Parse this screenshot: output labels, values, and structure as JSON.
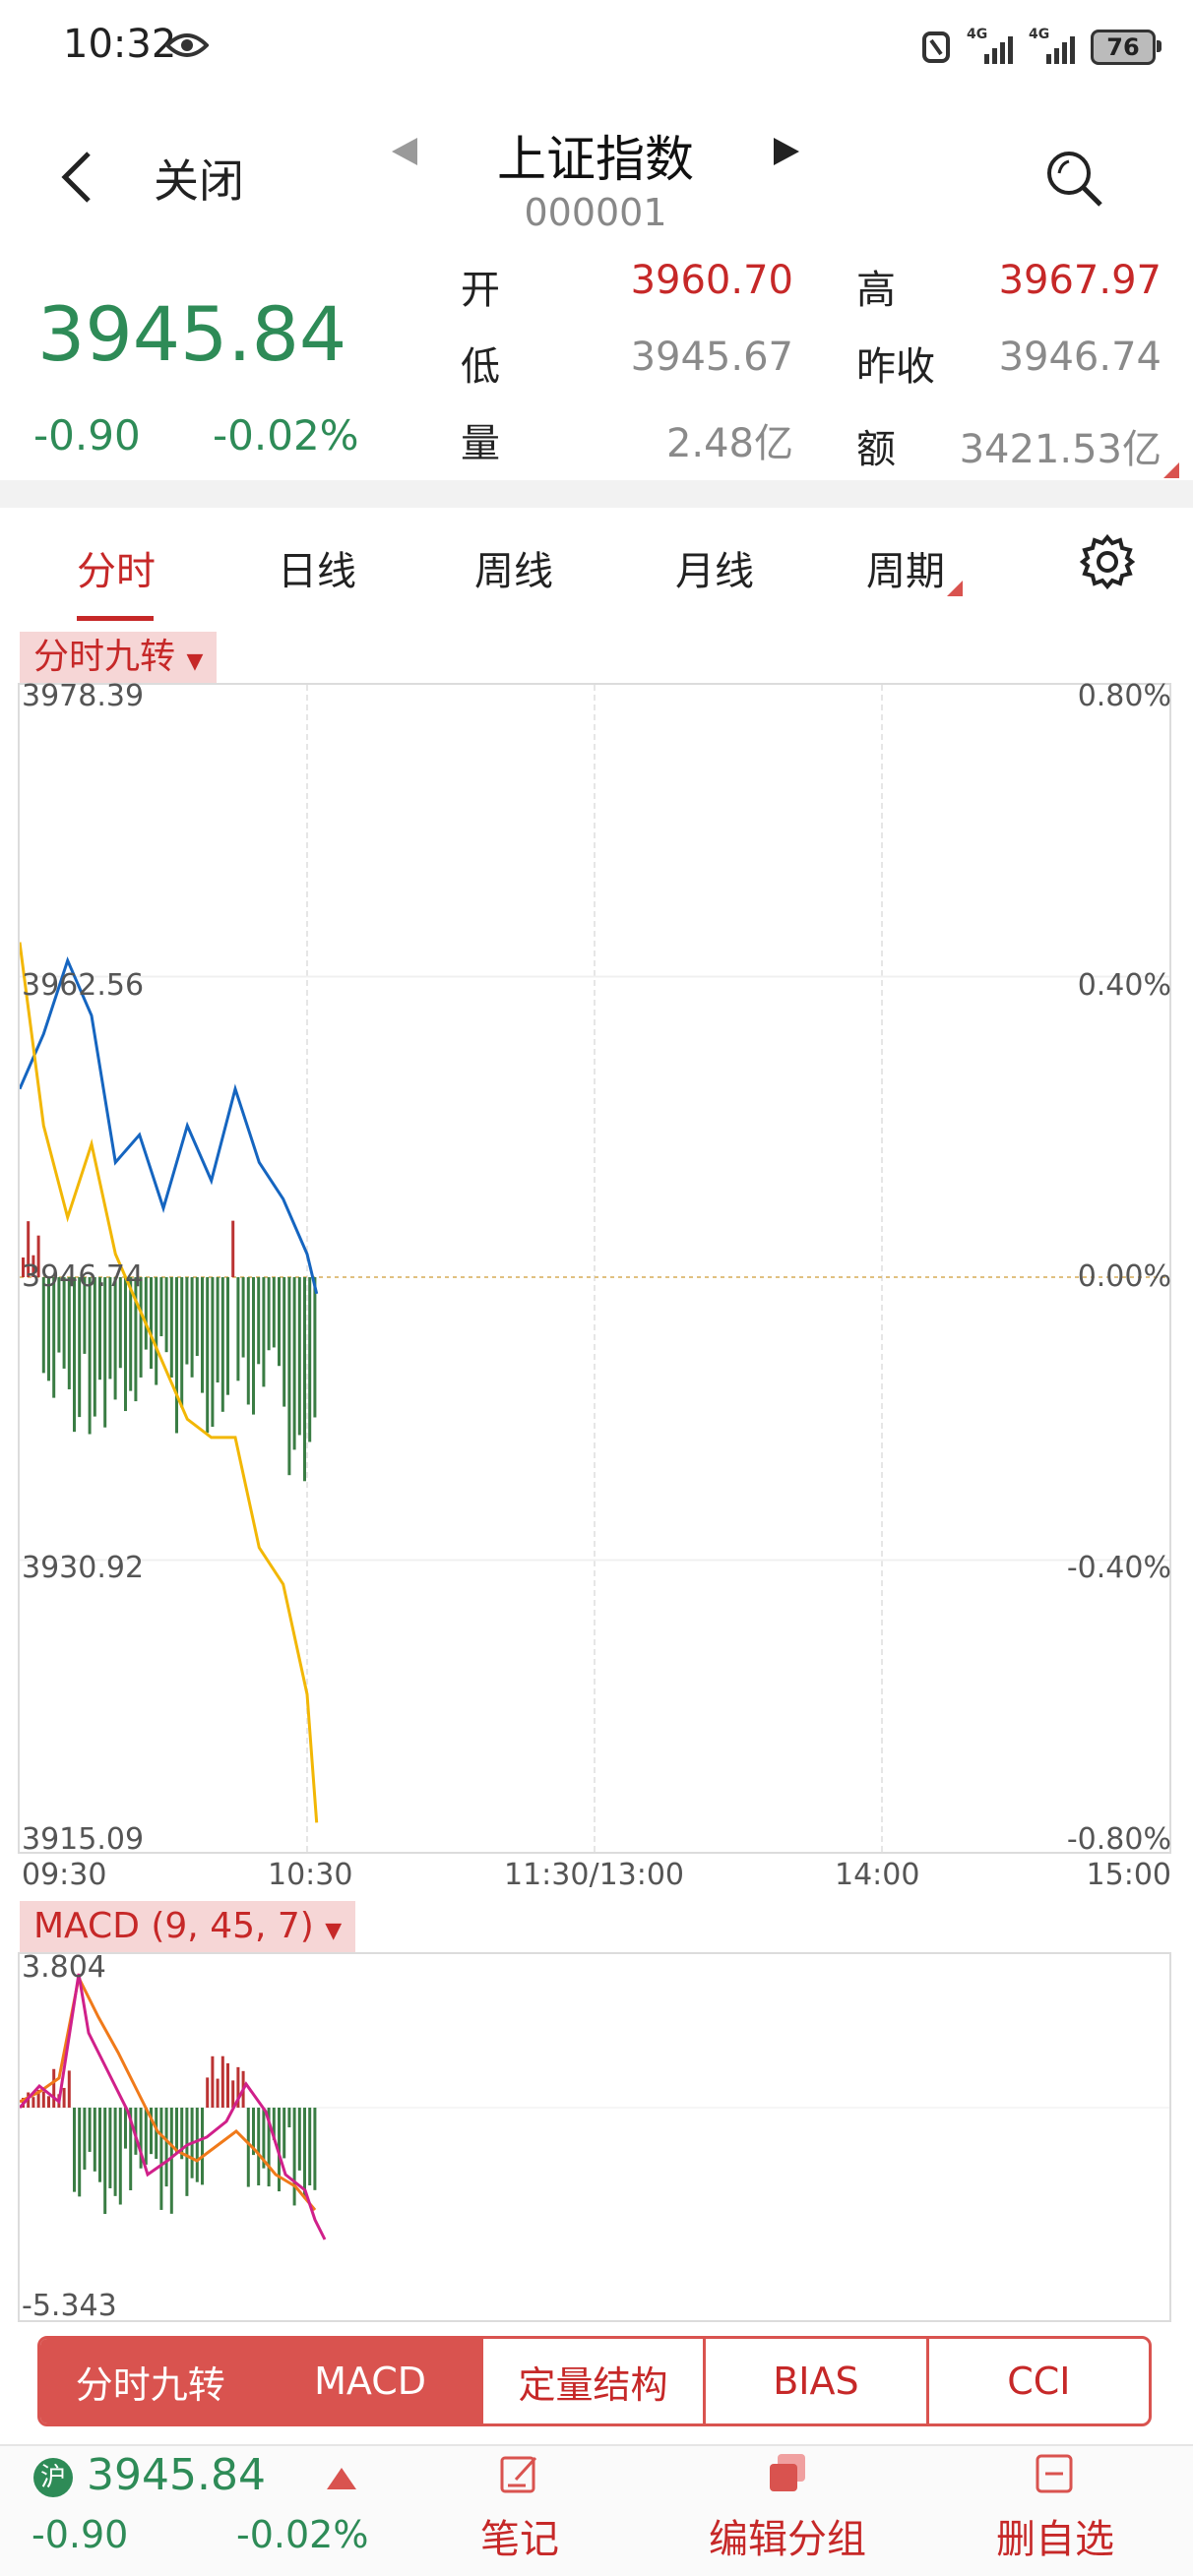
{
  "status_bar": {
    "time": "10:32",
    "battery": "76",
    "signal1": "4G",
    "signal2": "4G"
  },
  "header": {
    "close_label": "关闭",
    "title": "上证指数",
    "code": "000001"
  },
  "quote": {
    "price": "3945.84",
    "change": "-0.90",
    "change_pct": "-0.02%",
    "open_label": "开",
    "open": "3960.70",
    "high_label": "高",
    "high": "3967.97",
    "low_label": "低",
    "low": "3945.67",
    "prev_close_label": "昨收",
    "prev_close": "3946.74",
    "volume_label": "量",
    "volume": "2.48亿",
    "amount_label": "额",
    "amount": "3421.53亿"
  },
  "tabs": [
    {
      "label": "分时"
    },
    {
      "label": "日线"
    },
    {
      "label": "周线"
    },
    {
      "label": "月线"
    },
    {
      "label": "周期"
    }
  ],
  "main_chart": {
    "tag": "分时九转",
    "price_labels": [
      "3978.39",
      "3962.56",
      "3946.74",
      "3930.92",
      "3915.09"
    ],
    "pct_labels": [
      "0.80%",
      "0.40%",
      "0.00%",
      "-0.40%",
      "-0.80%"
    ],
    "time_labels": [
      "09:30",
      "10:30",
      "11:30/13:00",
      "14:00",
      "15:00"
    ]
  },
  "macd_chart": {
    "tag": "MACD (9, 45, 7)",
    "max_label": "3.804",
    "min_label": "-5.343"
  },
  "indicators": [
    {
      "label": "分时九转"
    },
    {
      "label": "MACD"
    },
    {
      "label": "定量结构"
    },
    {
      "label": "BIAS"
    },
    {
      "label": "CCI"
    }
  ],
  "bottom": {
    "market_badge": "沪",
    "price": "3945.84",
    "change": "-0.90",
    "change_pct": "-0.02%",
    "notes_label": "笔记",
    "edit_group_label": "编辑分组",
    "remove_label": "删自选"
  },
  "colors": {
    "up": "#c62828",
    "down": "#2e8b57",
    "price_line": "#1565c0",
    "avg_line": "#f2b705",
    "accent": "#d9534f"
  },
  "chart_data": {
    "type": "line",
    "title": "",
    "x": [
      "09:30",
      "09:35",
      "09:40",
      "09:45",
      "09:50",
      "09:55",
      "10:00",
      "10:05",
      "10:10",
      "10:15",
      "10:20",
      "10:25",
      "10:30",
      "10:32"
    ],
    "series": [
      {
        "values": [
          3957.0,
          3960.0,
          3964.0,
          3961.0,
          3953.0,
          3954.5,
          3950.5,
          3955.0,
          3952.0,
          3957.0,
          3953.0,
          3951.0,
          3948.0,
          3945.84
        ]
      },
      {
        "values": [
          3965.0,
          3955.0,
          3950.0,
          3954.0,
          3948.0,
          3945.0,
          3942.0,
          3939.0,
          3938.0,
          3938.0,
          3932.0,
          3930.0,
          3924.0,
          3917.0
        ]
      }
    ],
    "ylim": [
      3915.09,
      3978.39
    ],
    "xlim": [
      "09:30",
      "15:00"
    ]
  }
}
